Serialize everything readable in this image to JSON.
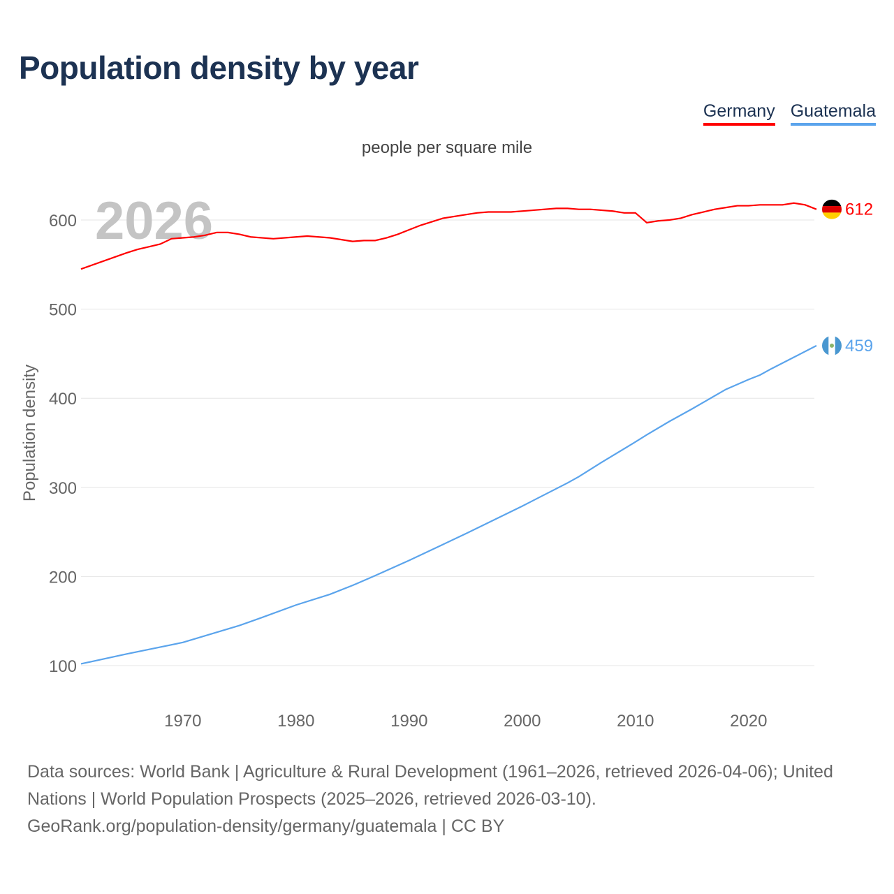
{
  "title": "Population density by year",
  "chart_data": {
    "type": "line",
    "title": "Population density by year",
    "subtitle": "people per square mile",
    "ylabel": "Population density",
    "xlabel": "",
    "year_label": "2026",
    "xlim": [
      1961,
      2026
    ],
    "ylim": [
      55,
      640
    ],
    "yticks": [
      100,
      200,
      300,
      400,
      500,
      600
    ],
    "xticks": [
      1970,
      1980,
      1990,
      2000,
      2010,
      2020
    ],
    "grid": true,
    "legend_position": "top-right",
    "series": [
      {
        "name": "Germany",
        "color": "#ff0000",
        "end_label": "612",
        "x": [
          1961,
          1963,
          1965,
          1966,
          1967,
          1968,
          1969,
          1970,
          1971,
          1972,
          1973,
          1974,
          1975,
          1976,
          1978,
          1980,
          1981,
          1983,
          1985,
          1986,
          1987,
          1988,
          1989,
          1990,
          1991,
          1993,
          1995,
          1996,
          1997,
          1999,
          2001,
          2003,
          2004,
          2005,
          2006,
          2008,
          2009,
          2010,
          2011,
          2012,
          2013,
          2014,
          2015,
          2016,
          2017,
          2018,
          2019,
          2020,
          2021,
          2022,
          2023,
          2024,
          2025,
          2026
        ],
        "y": [
          545,
          554,
          563,
          567,
          570,
          573,
          579,
          580,
          581,
          583,
          586,
          586,
          584,
          581,
          579,
          581,
          582,
          580,
          576,
          577,
          577,
          580,
          584,
          589,
          594,
          602,
          606,
          608,
          609,
          609,
          611,
          613,
          613,
          612,
          612,
          610,
          608,
          608,
          597,
          599,
          600,
          602,
          606,
          609,
          612,
          614,
          616,
          616,
          617,
          617,
          617,
          619,
          617,
          612
        ]
      },
      {
        "name": "Guatemala",
        "color": "#5ba4ec",
        "end_label": "459",
        "x": [
          1961,
          1965,
          1970,
          1975,
          1977,
          1980,
          1983,
          1985,
          1987,
          1990,
          1993,
          1995,
          2000,
          2004,
          2005,
          2007,
          2010,
          2011,
          2013,
          2015,
          2018,
          2020,
          2021,
          2022,
          2024,
          2026
        ],
        "y": [
          102,
          113,
          126,
          145,
          154,
          168,
          180,
          190,
          201,
          218,
          236,
          248,
          279,
          305,
          312,
          328,
          351,
          359,
          374,
          388,
          410,
          421,
          426,
          433,
          446,
          459
        ]
      }
    ]
  },
  "source": {
    "line1": "Data sources: World Bank | Agriculture & Rural Development (1961–2026, retrieved 2026-04-06); United Nations | World Population Prospects (2025–2026, retrieved 2026-03-10).",
    "line2": "GeoRank.org/population-density/germany/guatemala | CC BY"
  }
}
